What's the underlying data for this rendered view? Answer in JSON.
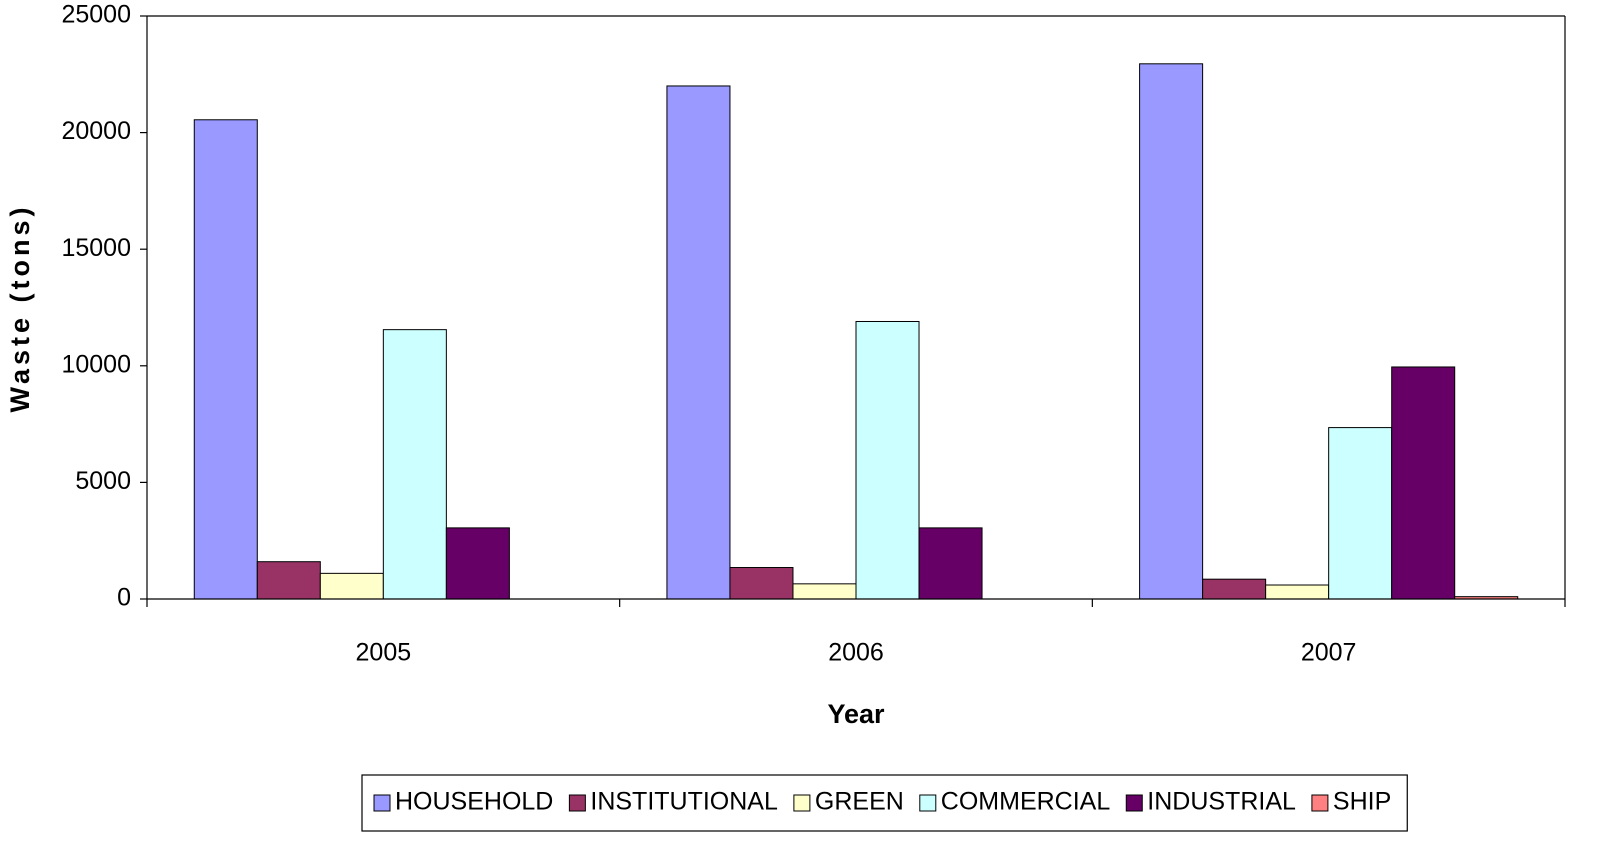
{
  "chart_data": {
    "type": "bar",
    "x_label": "Year",
    "y_label": "Waste (tons)",
    "categories": [
      "2005",
      "2006",
      "2007"
    ],
    "series": [
      {
        "name": "HOUSEHOLD",
        "color": "#9999ff",
        "values": [
          20550,
          22000,
          22950
        ]
      },
      {
        "name": "INSTITUTIONAL",
        "color": "#993366",
        "values": [
          1600,
          1350,
          850
        ]
      },
      {
        "name": "GREEN",
        "color": "#ffffcc",
        "values": [
          1100,
          650,
          600
        ]
      },
      {
        "name": "COMMERCIAL",
        "color": "#ccffff",
        "values": [
          11550,
          11900,
          7350
        ]
      },
      {
        "name": "INDUSTRIAL",
        "color": "#660066",
        "values": [
          3050,
          3050,
          9950
        ]
      },
      {
        "name": "SHIP",
        "color": "#ff8080",
        "values": [
          0,
          0,
          100
        ]
      }
    ],
    "ylim": [
      0,
      25000
    ],
    "yticks": [
      0,
      5000,
      10000,
      15000,
      20000,
      25000
    ],
    "legend": "bottom"
  }
}
